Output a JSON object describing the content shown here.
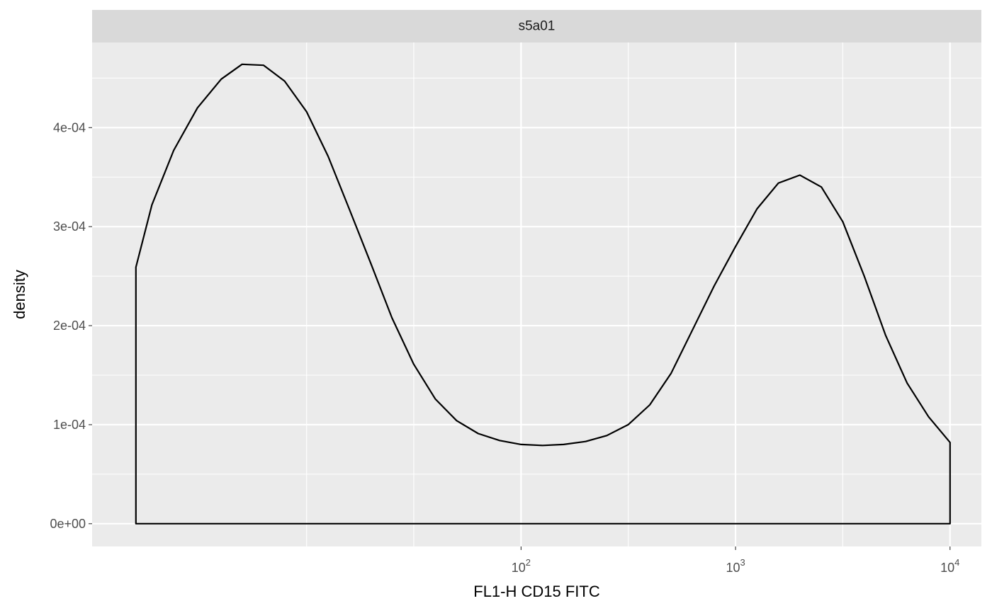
{
  "chart_data": {
    "type": "area",
    "facet_label": "s5a01",
    "xlabel": "FL1-H CD15 FITC",
    "ylabel": "density",
    "x_scale": "log10",
    "xlim": [
      1,
      14000
    ],
    "ylim": [
      -2.3e-05,
      0.000486
    ],
    "x_ticks": [
      {
        "value": 100,
        "base": "10",
        "exp": "2"
      },
      {
        "value": 1000,
        "base": "10",
        "exp": "3"
      },
      {
        "value": 10000,
        "base": "10",
        "exp": "4"
      }
    ],
    "x_minor_ticks": [
      10,
      31.6,
      316,
      3160
    ],
    "y_ticks": [
      {
        "value": 0,
        "label": "0e+00"
      },
      {
        "value": 0.0001,
        "label": "1e-04"
      },
      {
        "value": 0.0002,
        "label": "2e-04"
      },
      {
        "value": 0.0003,
        "label": "3e-04"
      },
      {
        "value": 0.0004,
        "label": "4e-04"
      }
    ],
    "y_minor_ticks": [
      5e-05,
      0.00015,
      0.00025,
      0.00035,
      0.00045
    ],
    "grid": true,
    "series": [
      {
        "x": [
          1.6,
          1.9,
          2.4,
          3.1,
          4,
          5,
          6.3,
          7.9,
          10,
          12.6,
          15.8,
          20,
          25,
          31.6,
          39.8,
          50.1,
          63.1,
          79.4,
          100,
          126,
          158,
          200,
          251,
          316,
          398,
          501,
          631,
          794,
          1000,
          1259,
          1585,
          1995,
          2512,
          3162,
          3981,
          5012,
          6310,
          7943,
          10000
        ],
        "y": [
          0.000259,
          0.000322,
          0.000377,
          0.00042,
          0.000449,
          0.000464,
          0.000463,
          0.000447,
          0.000416,
          0.000371,
          0.000318,
          0.000262,
          0.000208,
          0.000161,
          0.000126,
          0.000104,
          9.1e-05,
          8.4e-05,
          8e-05,
          7.9e-05,
          8e-05,
          8.3e-05,
          8.9e-05,
          0.0001,
          0.00012,
          0.000152,
          0.000196,
          0.00024,
          0.00028,
          0.000318,
          0.000344,
          0.000352,
          0.00034,
          0.000305,
          0.00025,
          0.00019,
          0.000142,
          0.000108,
          8.2e-05
        ]
      }
    ]
  },
  "colors": {
    "panel_background": "#ebebeb",
    "strip_background": "#d9d9d9",
    "grid_line": "#ffffff",
    "density_line": "#000000"
  }
}
